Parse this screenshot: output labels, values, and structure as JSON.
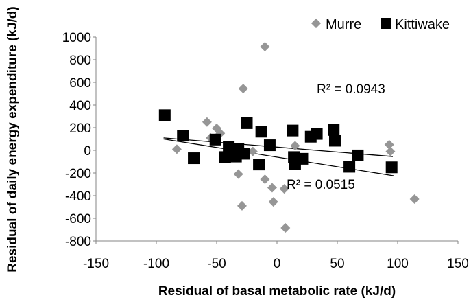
{
  "chart_data": {
    "type": "scatter",
    "title": "",
    "xlabel": "Residual of basal metabolic rate (kJ/d)",
    "ylabel": "Residual of daily energy expenditure (kJ/d)",
    "xlim": [
      -150,
      150
    ],
    "ylim": [
      -800,
      1000
    ],
    "x_ticks": [
      -150,
      -100,
      -50,
      0,
      50,
      100,
      150
    ],
    "y_ticks": [
      -800,
      -600,
      -400,
      -200,
      0,
      200,
      400,
      600,
      800,
      1000
    ],
    "grid": false,
    "legend_position": "top-right",
    "series": [
      {
        "name": "Murre",
        "marker": "diamond",
        "color": "#969696",
        "points": [
          [
            -83,
            10
          ],
          [
            -58,
            250
          ],
          [
            -55,
            110
          ],
          [
            -50,
            195
          ],
          [
            -47,
            150
          ],
          [
            -38,
            10
          ],
          [
            -30,
            -30
          ],
          [
            -32,
            -210
          ],
          [
            -29,
            -490
          ],
          [
            -28,
            545
          ],
          [
            -20,
            -10
          ],
          [
            -10,
            915
          ],
          [
            -10,
            -255
          ],
          [
            -4,
            -330
          ],
          [
            -3,
            -455
          ],
          [
            6,
            -340
          ],
          [
            7,
            -685
          ],
          [
            15,
            40
          ],
          [
            93,
            50
          ],
          [
            94,
            -10
          ],
          [
            114,
            -430
          ]
        ],
        "trendline": {
          "x": [
            -94,
            96
          ],
          "y": [
            110,
            -55
          ]
        },
        "r2_label": "R² = 0.0515"
      },
      {
        "name": "Kittiwake",
        "marker": "square",
        "color": "#000000",
        "points": [
          [
            -93,
            310
          ],
          [
            -78,
            130
          ],
          [
            -69,
            -70
          ],
          [
            -51,
            95
          ],
          [
            -43,
            -60
          ],
          [
            -40,
            30
          ],
          [
            -36,
            -10
          ],
          [
            -34,
            -55
          ],
          [
            -32,
            10
          ],
          [
            -27,
            -30
          ],
          [
            -25,
            240
          ],
          [
            -15,
            -125
          ],
          [
            -13,
            165
          ],
          [
            -6,
            45
          ],
          [
            13,
            175
          ],
          [
            14,
            -60
          ],
          [
            15,
            -120
          ],
          [
            21,
            -75
          ],
          [
            28,
            120
          ],
          [
            33,
            145
          ],
          [
            47,
            180
          ],
          [
            48,
            85
          ],
          [
            60,
            -145
          ],
          [
            67,
            -45
          ],
          [
            95,
            -150
          ]
        ],
        "trendline": {
          "x": [
            -94,
            97
          ],
          "y": [
            100,
            -225
          ]
        },
        "r2_label": "R² = 0.0943"
      }
    ]
  }
}
